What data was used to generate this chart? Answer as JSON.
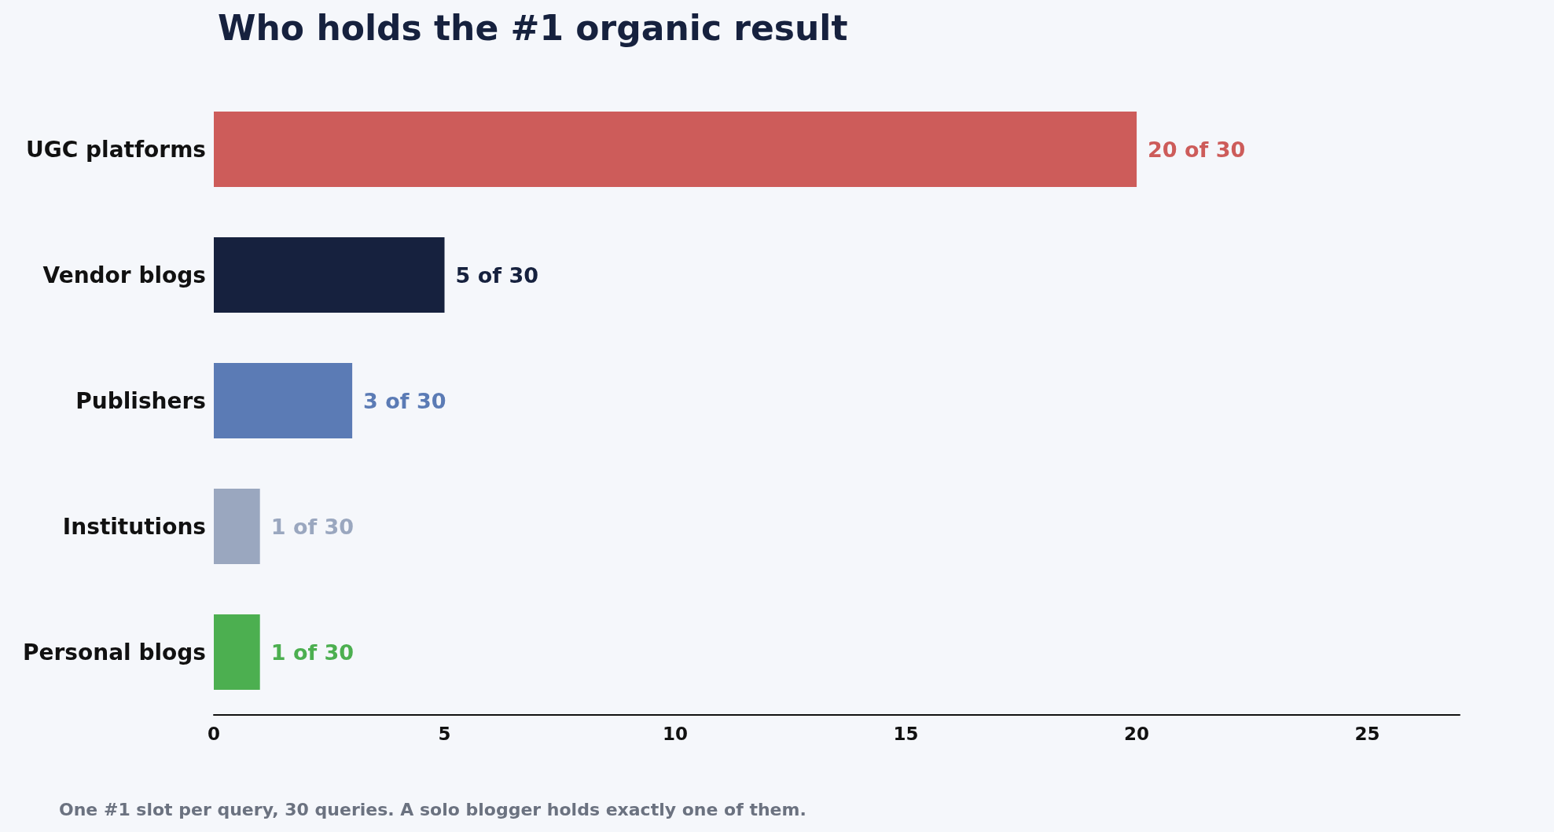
{
  "chart_data": {
    "type": "bar",
    "orientation": "horizontal",
    "title": "Who holds the #1 organic result",
    "categories": [
      "UGC platforms",
      "Vendor blogs",
      "Publishers",
      "Institutions",
      "Personal blogs"
    ],
    "values": [
      20,
      5,
      3,
      1,
      1
    ],
    "colors": [
      "#cd5c5a",
      "#16213e",
      "#5b7bb5",
      "#9aa7bf",
      "#4caf50"
    ],
    "value_labels": [
      "20 of 30",
      "5 of 30",
      "3 of 30",
      "1 of 30",
      "1 of 30"
    ],
    "xlim": [
      0,
      27
    ],
    "xticks": [
      0,
      5,
      10,
      15,
      20,
      25
    ],
    "grid": false,
    "annotations": [
      "One #1 slot per query, 30 queries. A solo blogger holds exactly one of them."
    ]
  }
}
